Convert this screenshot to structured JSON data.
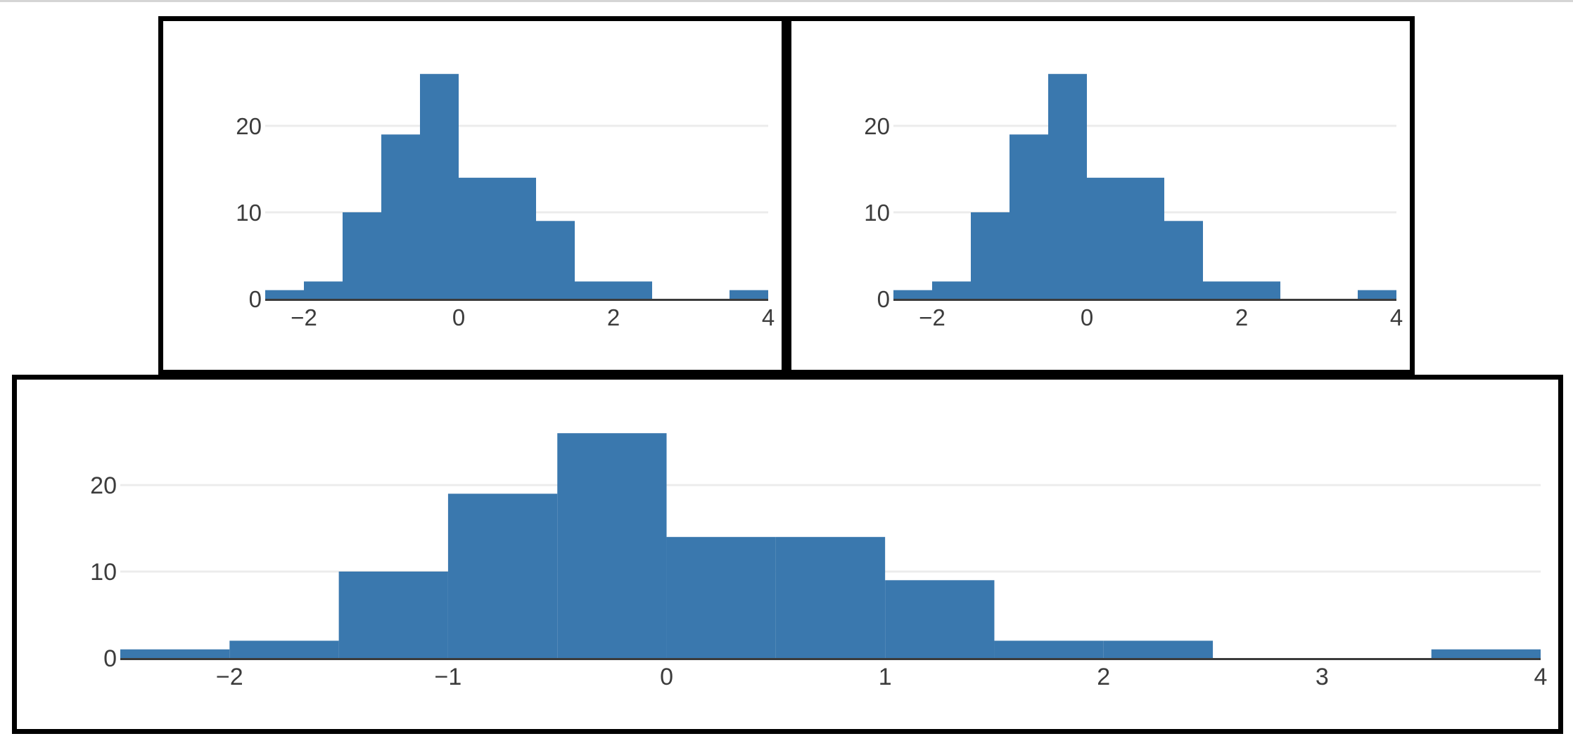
{
  "style": {
    "background": "#ffffff",
    "page_top_line_color": "#d5d5d5",
    "panel_border_color": "#000000",
    "bar_color": "#3a78ae",
    "grid_color": "#ececec",
    "axis_color": "#3b3b3b",
    "tick_label_color": "#3c3c3c"
  },
  "chart_data": [
    {
      "id": "top-left",
      "type": "bar",
      "subtype": "histogram",
      "title": "",
      "xlabel": "",
      "ylabel": "",
      "bin_start": -2.5,
      "bin_width": 0.5,
      "counts": [
        1,
        2,
        10,
        19,
        26,
        14,
        14,
        9,
        2,
        2,
        0,
        0,
        1
      ],
      "xlim": [
        -2.5,
        4
      ],
      "ylim": [
        0,
        32
      ],
      "grid": "horizontal-only",
      "legend": "none",
      "x_ticks": [
        {
          "value": -2,
          "label": "−2"
        },
        {
          "value": 0,
          "label": "0"
        },
        {
          "value": 2,
          "label": "2"
        },
        {
          "value": 4,
          "label": "4"
        }
      ],
      "y_ticks": [
        {
          "value": 0,
          "label": "0"
        },
        {
          "value": 10,
          "label": "10"
        },
        {
          "value": 20,
          "label": "20"
        }
      ],
      "y_gridlines": [
        10,
        20
      ]
    },
    {
      "id": "top-right",
      "type": "bar",
      "subtype": "histogram",
      "title": "",
      "xlabel": "",
      "ylabel": "",
      "bin_start": -2.5,
      "bin_width": 0.5,
      "counts": [
        1,
        2,
        10,
        19,
        26,
        14,
        14,
        9,
        2,
        2,
        0,
        0,
        1
      ],
      "xlim": [
        -2.5,
        4
      ],
      "ylim": [
        0,
        32
      ],
      "grid": "horizontal-only",
      "legend": "none",
      "x_ticks": [
        {
          "value": -2,
          "label": "−2"
        },
        {
          "value": 0,
          "label": "0"
        },
        {
          "value": 2,
          "label": "2"
        },
        {
          "value": 4,
          "label": "4"
        }
      ],
      "y_ticks": [
        {
          "value": 0,
          "label": "0"
        },
        {
          "value": 10,
          "label": "10"
        },
        {
          "value": 20,
          "label": "20"
        }
      ],
      "y_gridlines": [
        10,
        20
      ]
    },
    {
      "id": "bottom",
      "type": "bar",
      "subtype": "histogram",
      "title": "",
      "xlabel": "",
      "ylabel": "",
      "bin_start": -2.5,
      "bin_width": 0.5,
      "counts": [
        1,
        2,
        10,
        19,
        26,
        14,
        14,
        9,
        2,
        2,
        0,
        0,
        1
      ],
      "xlim": [
        -2.5,
        4
      ],
      "ylim": [
        0,
        32
      ],
      "grid": "horizontal-only",
      "legend": "none",
      "x_ticks": [
        {
          "value": -2,
          "label": "−2"
        },
        {
          "value": -1,
          "label": "−1"
        },
        {
          "value": 0,
          "label": "0"
        },
        {
          "value": 1,
          "label": "1"
        },
        {
          "value": 2,
          "label": "2"
        },
        {
          "value": 3,
          "label": "3"
        },
        {
          "value": 4,
          "label": "4"
        }
      ],
      "y_ticks": [
        {
          "value": 0,
          "label": "0"
        },
        {
          "value": 10,
          "label": "10"
        },
        {
          "value": 20,
          "label": "20"
        }
      ],
      "y_gridlines": [
        10,
        20
      ]
    }
  ]
}
